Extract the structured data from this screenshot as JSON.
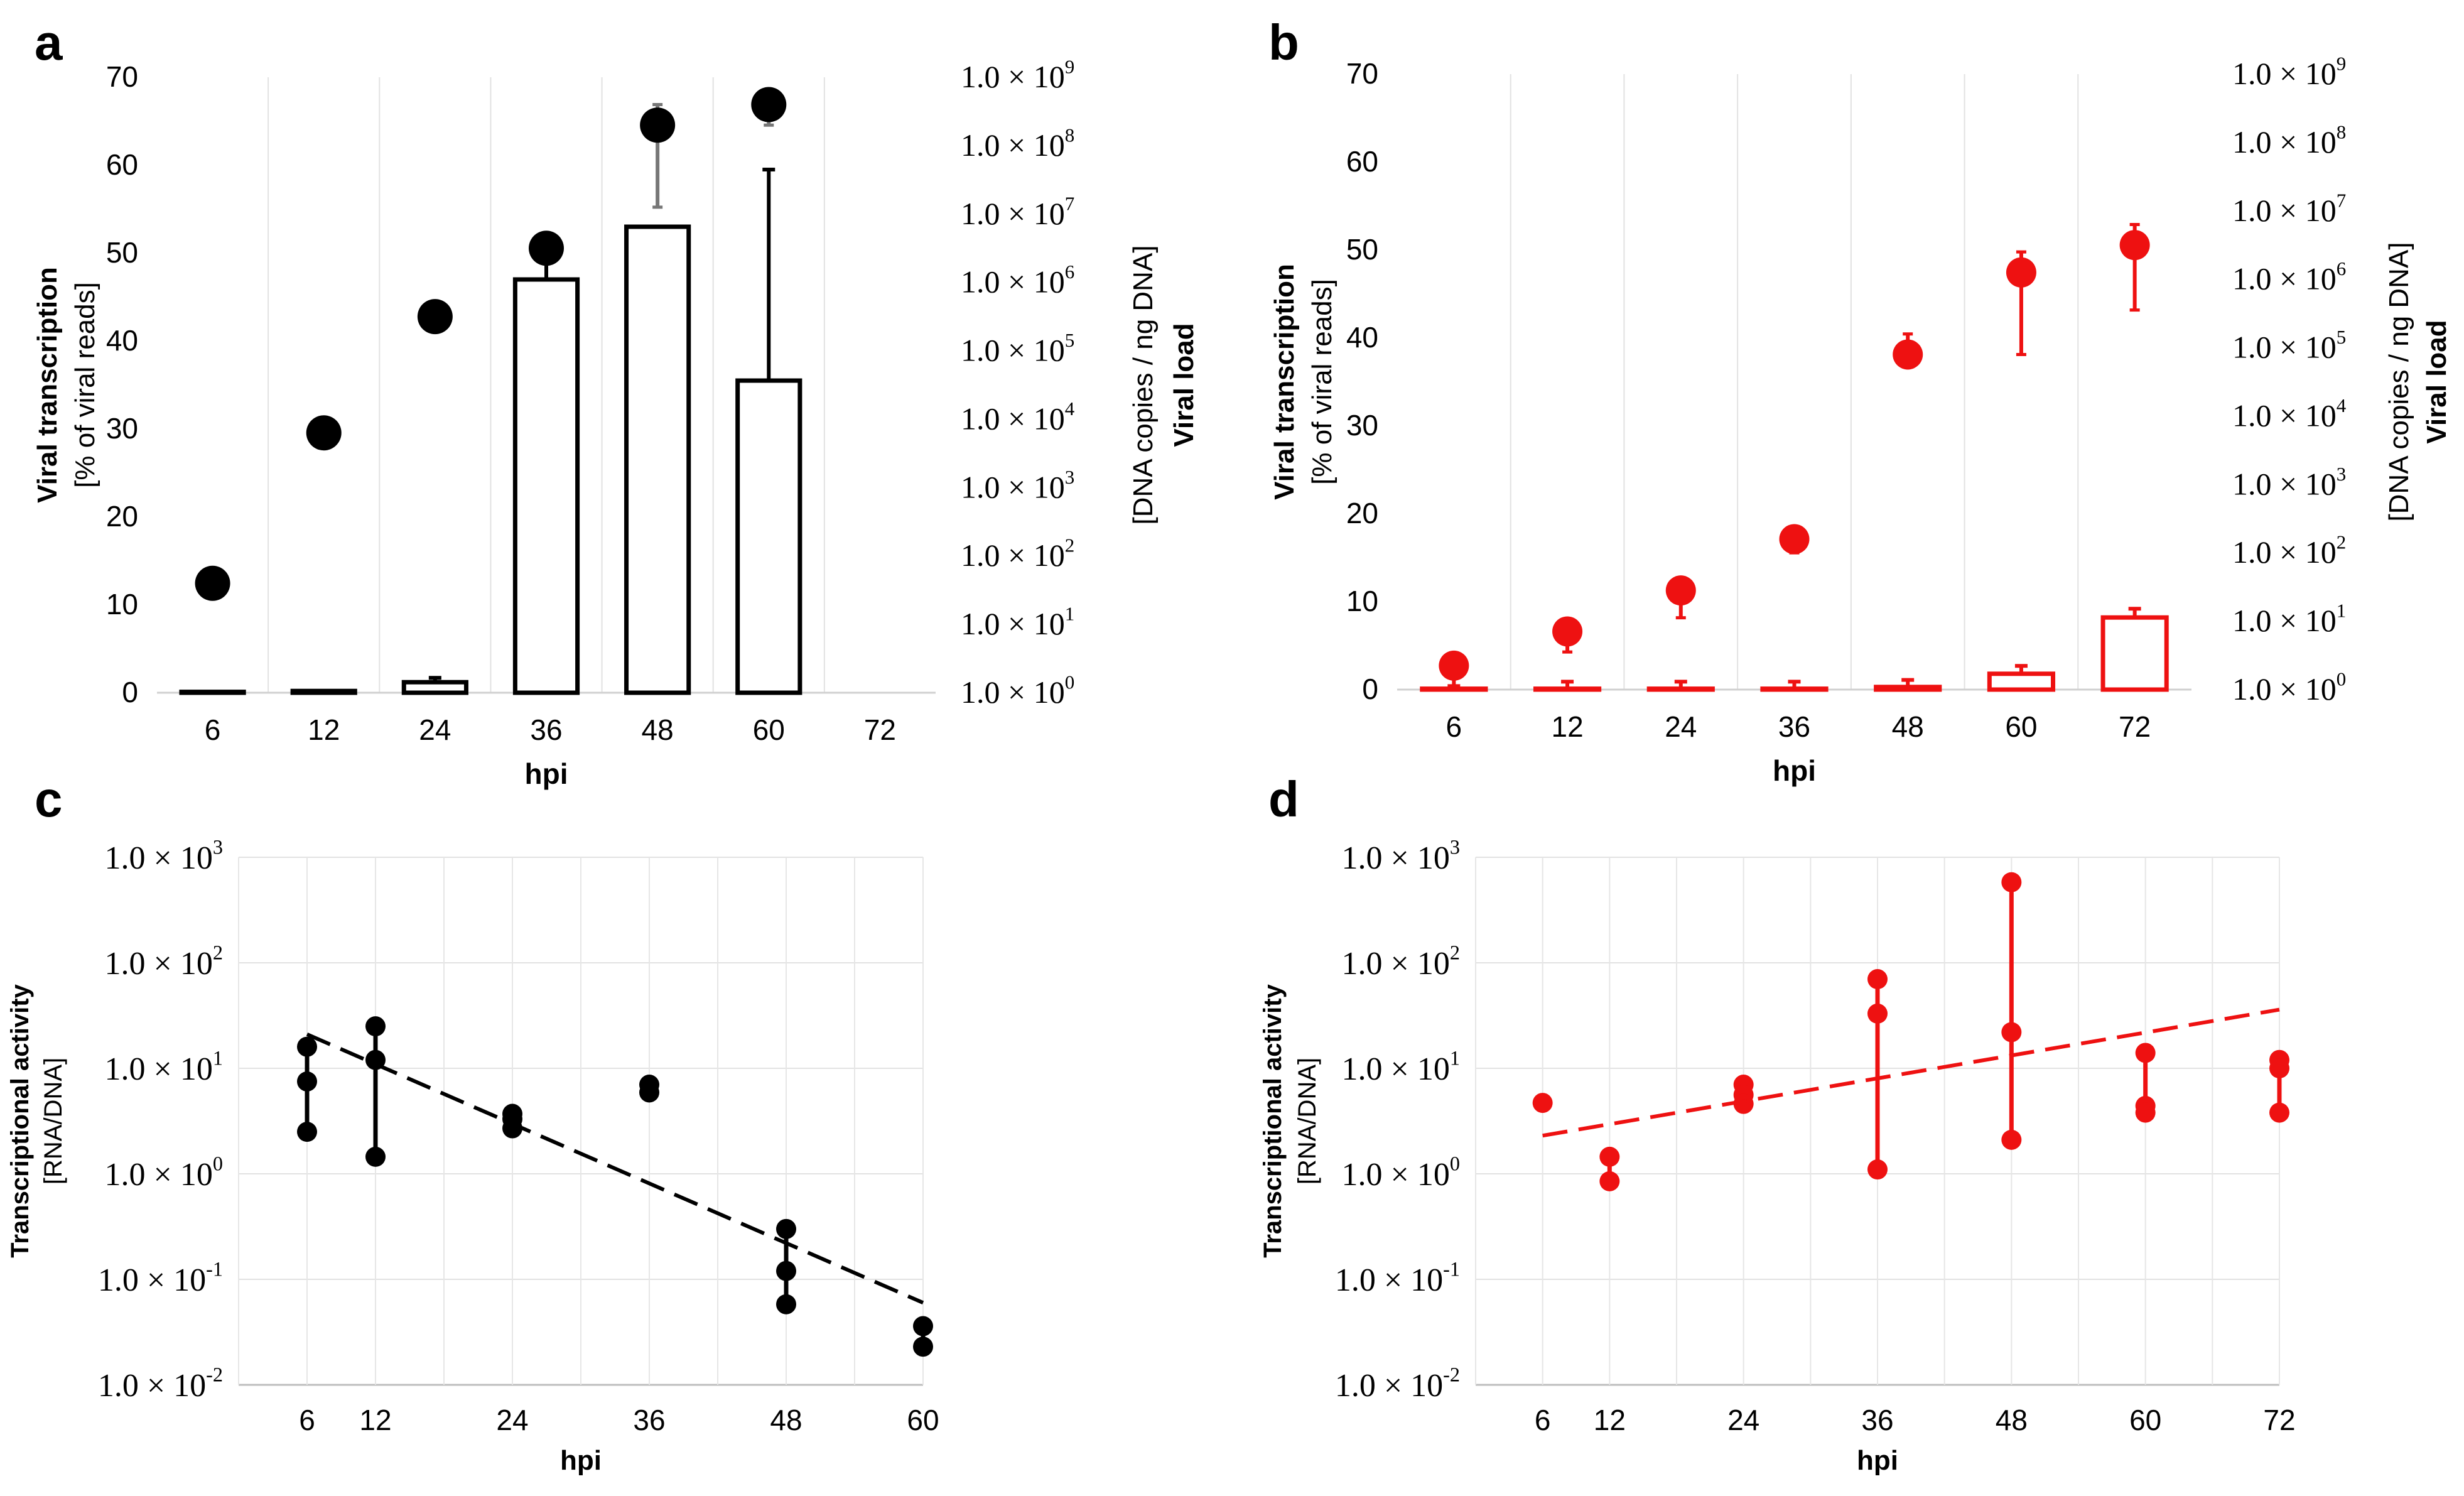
{
  "chart_data": [
    {
      "panel": "a",
      "type": "bar+scatter",
      "color": "#000000",
      "categories": [
        "6",
        "12",
        "24",
        "36",
        "48",
        "60",
        "72"
      ],
      "xlabel": "hpi",
      "ylabel_bold": "Viral transcription",
      "ylabel_sub": "[% of viral reads]",
      "ylim": [
        0,
        70
      ],
      "yticks": [
        "0",
        "10",
        "20",
        "30",
        "40",
        "50",
        "60",
        "70"
      ],
      "y2label_bold": "Viral load",
      "y2label_sub": "[DNA copies / ng DNA]",
      "y2lim_log10": [
        0,
        9
      ],
      "y2ticks": [
        "1.0 × 10^0",
        "1.0 × 10^1",
        "1.0 × 10^2",
        "1.0 × 10^3",
        "1.0 × 10^4",
        "1.0 × 10^5",
        "1.0 × 10^6",
        "1.0 × 10^7",
        "1.0 × 10^8",
        "1.0 × 10^9"
      ],
      "bars": {
        "name": "Viral transcription",
        "values": [
          0.1,
          0.2,
          1.2,
          47,
          53,
          35.5,
          null
        ],
        "err_up": [
          0,
          0,
          0.5,
          2.5,
          0,
          24,
          null
        ]
      },
      "points": {
        "name": "Viral load",
        "log10_values": [
          1.6,
          3.8,
          5.5,
          6.5,
          8.3,
          8.6,
          null
        ],
        "err_low": [
          0,
          0,
          0.2,
          0,
          1.2,
          0.3,
          null
        ],
        "err_high": [
          0,
          0,
          0,
          0,
          0.3,
          0,
          null
        ]
      }
    },
    {
      "panel": "b",
      "type": "bar+scatter",
      "color": "#ee1111",
      "categories": [
        "6",
        "12",
        "24",
        "36",
        "48",
        "60",
        "72"
      ],
      "xlabel": "hpi",
      "ylabel_bold": "Viral transcription",
      "ylabel_sub": "[% of viral reads]",
      "ylim": [
        0,
        70
      ],
      "yticks": [
        "0",
        "10",
        "20",
        "30",
        "40",
        "50",
        "60",
        "70"
      ],
      "y2label_bold": "Viral load",
      "y2label_sub": "[DNA copies / ng DNA]",
      "y2lim_log10": [
        0,
        9
      ],
      "y2ticks": [
        "1.0 × 10^0",
        "1.0 × 10^1",
        "1.0 × 10^2",
        "1.0 × 10^3",
        "1.0 × 10^4",
        "1.0 × 10^5",
        "1.0 × 10^6",
        "1.0 × 10^7",
        "1.0 × 10^8",
        "1.0 × 10^9"
      ],
      "bars": {
        "name": "Viral transcription",
        "values": [
          0.1,
          0.1,
          0.1,
          0.1,
          0.3,
          1.8,
          8.2
        ],
        "err_up": [
          0.3,
          0.8,
          0.8,
          0.8,
          0.8,
          0.9,
          1.0
        ]
      },
      "points": {
        "name": "Viral load",
        "log10_values": [
          0.35,
          0.85,
          1.45,
          2.2,
          4.9,
          6.1,
          6.5
        ],
        "err_low": [
          0.3,
          0.3,
          0.4,
          0.2,
          0.1,
          1.2,
          0.95
        ],
        "err_high": [
          0.1,
          0.1,
          0.1,
          0.1,
          0.3,
          0.3,
          0.3
        ]
      }
    },
    {
      "panel": "c",
      "type": "scatter",
      "color": "#000000",
      "x": [
        6,
        12,
        24,
        36,
        48,
        60
      ],
      "xticks": [
        "6",
        "12",
        "24",
        "36",
        "48",
        "60"
      ],
      "xlim": [
        0,
        60
      ],
      "xlabel": "hpi",
      "ylabel_bold": "Transcriptional activity",
      "ylabel_sub": "[RNA/DNA]",
      "ylim_log10": [
        -2,
        3
      ],
      "yticks": [
        "1.0 × 10^3",
        "1.0 × 10^2",
        "1.0 × 10^1",
        "1.0 × 10^0",
        "1.0 × 10^-1",
        "1.0 × 10^-2"
      ],
      "replicates": [
        [
          16,
          7.5,
          2.5
        ],
        [
          25,
          12,
          1.45
        ],
        [
          3.7,
          3.3,
          2.7
        ],
        [
          7,
          5.9
        ],
        [
          0.3,
          0.12,
          0.058
        ],
        [
          0.036,
          0.023
        ]
      ],
      "trend": {
        "style": "dashed",
        "x": [
          6,
          60
        ],
        "y": [
          21,
          0.06
        ]
      }
    },
    {
      "panel": "d",
      "type": "scatter",
      "color": "#ee1111",
      "x": [
        6,
        12,
        24,
        36,
        48,
        60,
        72
      ],
      "xticks": [
        "6",
        "12",
        "24",
        "36",
        "48",
        "60",
        "72"
      ],
      "xlim": [
        0,
        72
      ],
      "xlabel": "hpi",
      "ylabel_bold": "Transcriptional activity",
      "ylabel_sub": "[RNA/DNA]",
      "ylim_log10": [
        -2,
        3
      ],
      "yticks": [
        "1.0 × 10^3",
        "1.0 × 10^2",
        "1.0 × 10^1",
        "1.0 × 10^0",
        "1.0 × 10^-1",
        "1.0 × 10^-2"
      ],
      "replicates": [
        [
          4.7
        ],
        [
          1.45,
          0.85
        ],
        [
          7,
          5.6,
          4.6
        ],
        [
          70,
          33,
          1.1
        ],
        [
          580,
          22,
          2.1
        ],
        [
          14,
          4.4,
          3.8
        ],
        [
          12,
          10,
          3.8
        ]
      ],
      "trend": {
        "style": "dashed",
        "x": [
          6,
          72
        ],
        "y": [
          2.3,
          36
        ]
      }
    }
  ]
}
